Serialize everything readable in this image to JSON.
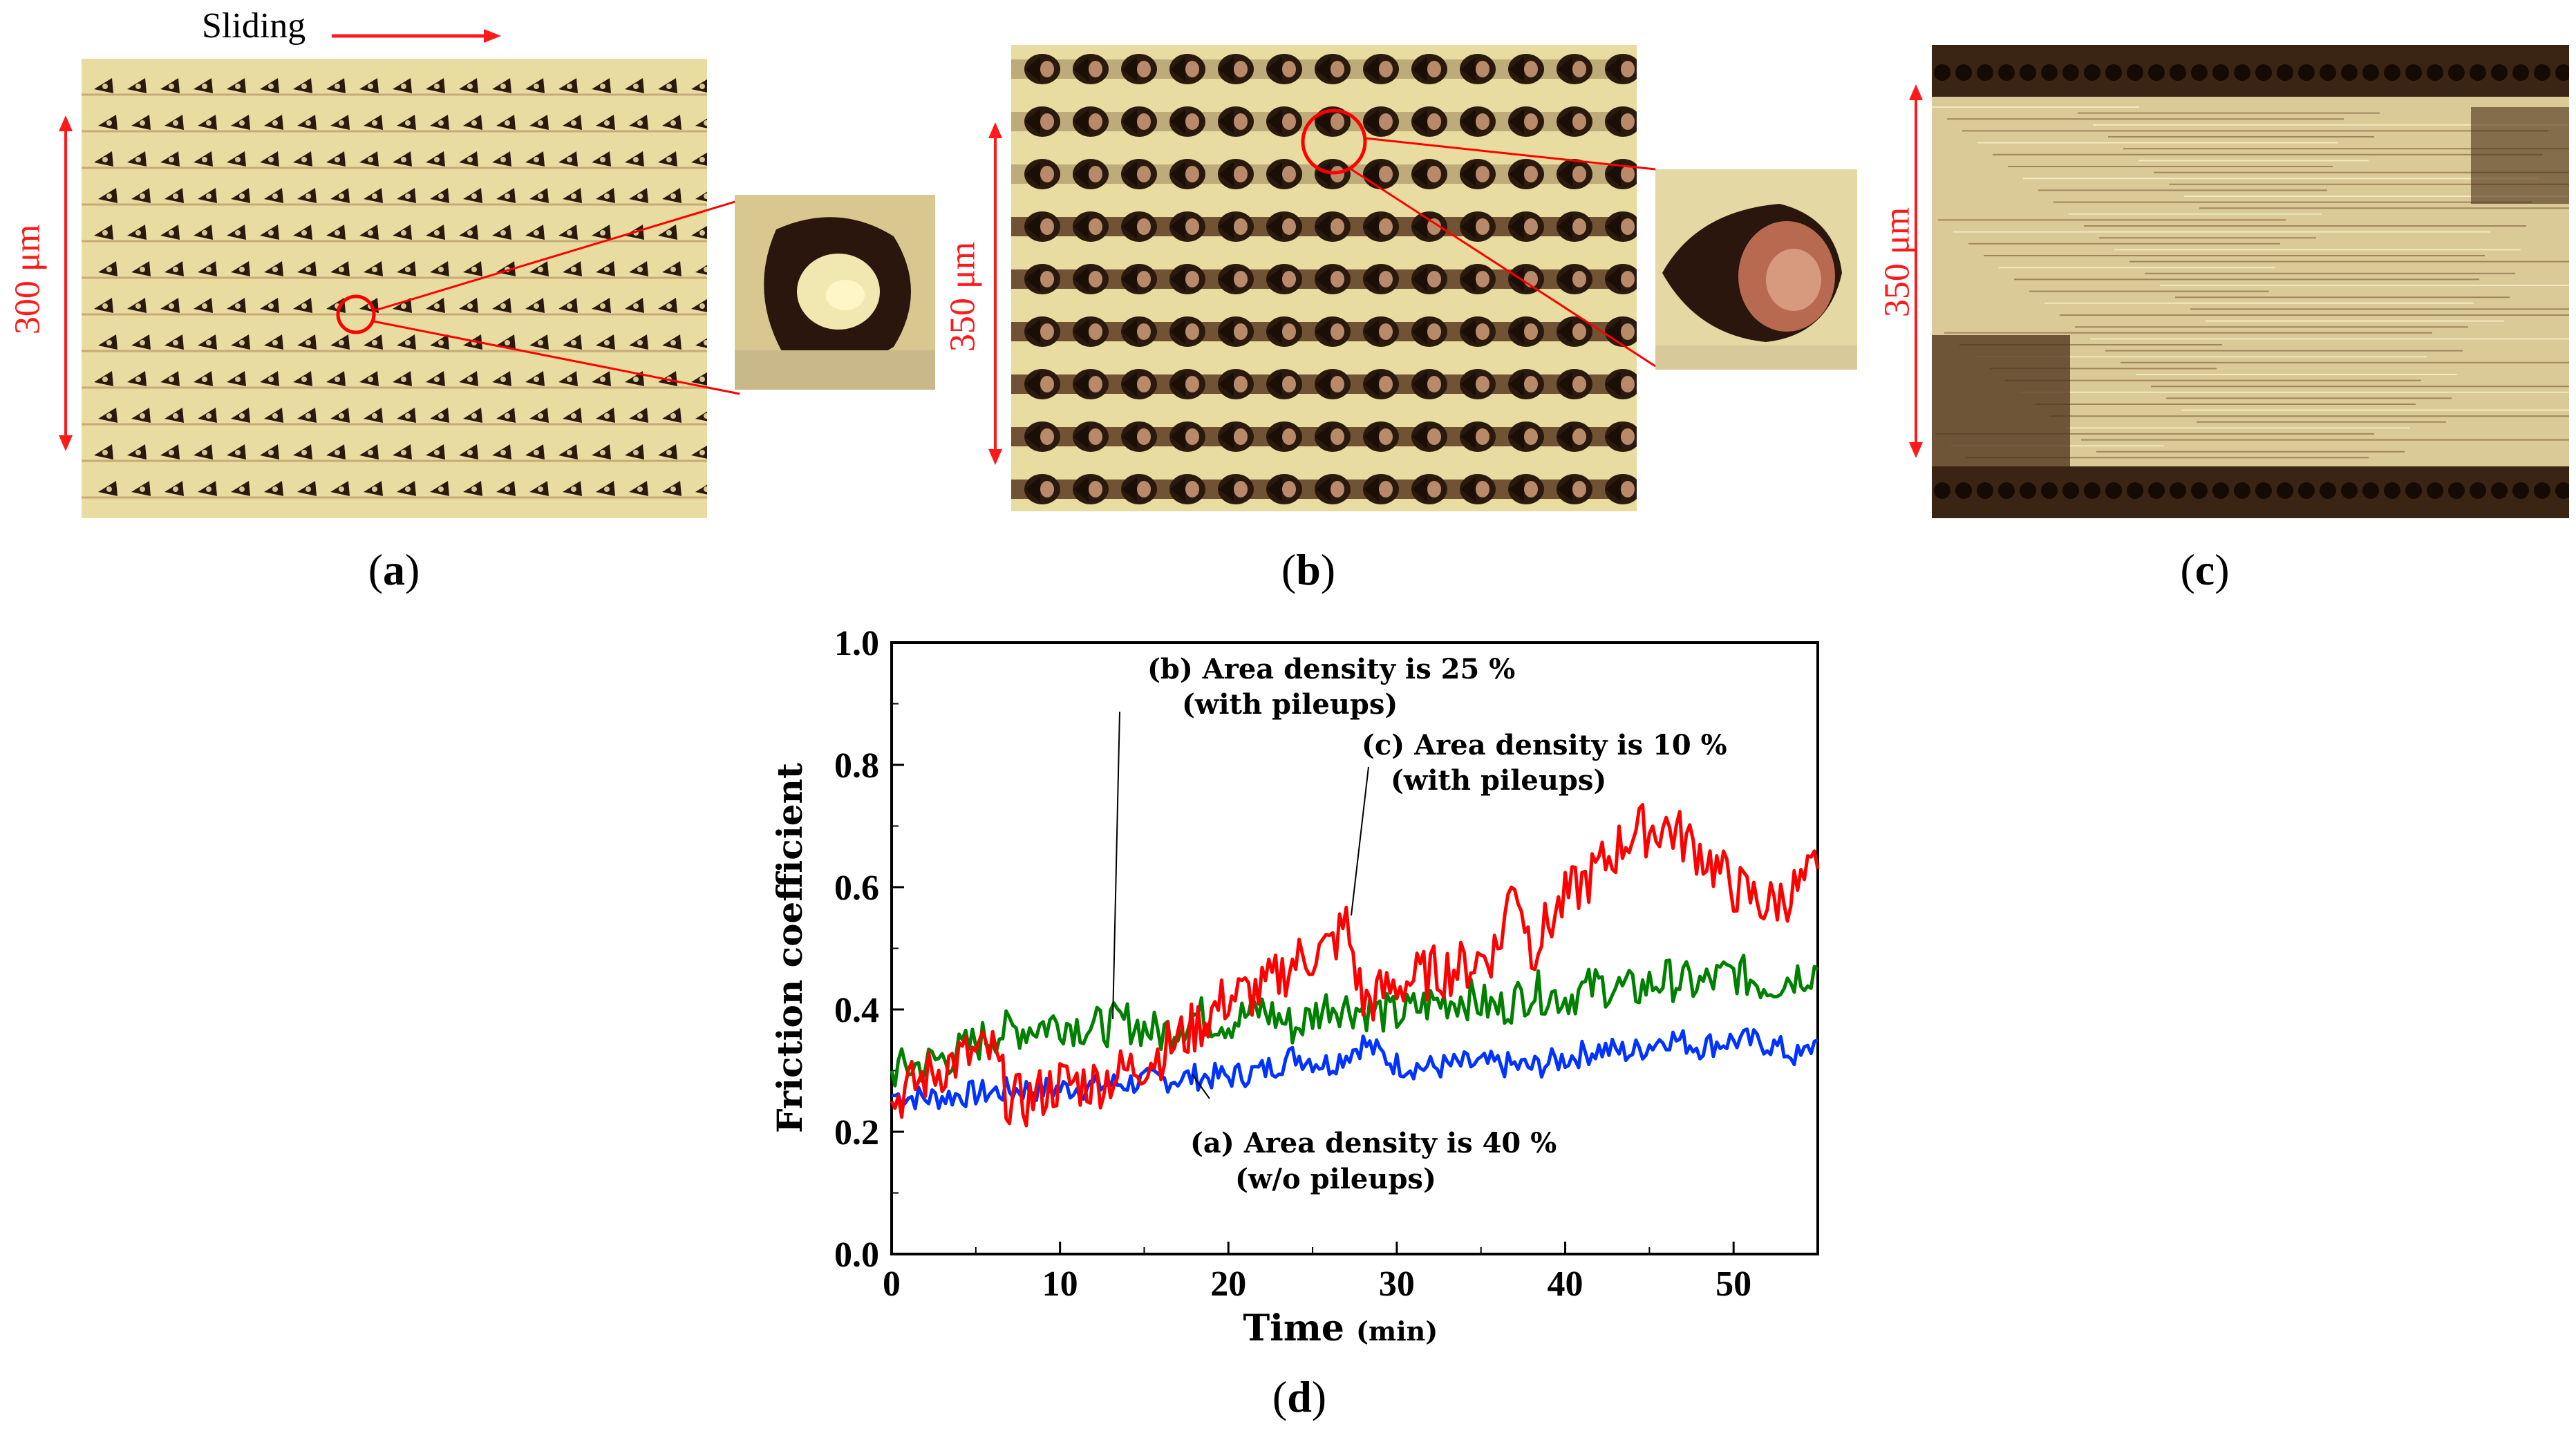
{
  "panels": {
    "a": {
      "label": "(a)",
      "letter": "a",
      "scale": "300 μm",
      "sliding": "Sliding"
    },
    "b": {
      "label": "(b)",
      "letter": "b",
      "scale": "350 μm"
    },
    "c": {
      "label": "(c)",
      "letter": "c",
      "scale": "350 μm"
    },
    "d": {
      "letter": "d"
    }
  },
  "colors": {
    "red": "#ff0000",
    "green": "#008000",
    "blue": "#0033ff",
    "scale_red": "#ff1a1a",
    "micro_bg": "#e8dca0",
    "micro_dark": "#2a1a0e"
  },
  "chart_data": {
    "type": "line",
    "xlabel": "Time",
    "xlabel_unit": "(min)",
    "ylabel": "Friction coefficient",
    "xlim": [
      0,
      55
    ],
    "ylim": [
      0.0,
      1.0
    ],
    "xticks": [
      0,
      10,
      20,
      30,
      40,
      50
    ],
    "yticks": [
      "0.0",
      "0.2",
      "0.4",
      "0.6",
      "0.8",
      "1.0"
    ],
    "series": [
      {
        "name": "(a) Area density is 40 %",
        "note": "(w/o pileups)",
        "color": "#0033ff",
        "x": [
          0,
          2,
          4,
          6,
          8,
          10,
          12,
          14,
          16,
          18,
          20,
          22,
          24,
          26,
          28,
          30,
          32,
          34,
          36,
          38,
          40,
          42,
          44,
          46,
          48,
          50,
          52,
          54,
          55
        ],
        "y": [
          0.26,
          0.255,
          0.26,
          0.265,
          0.27,
          0.27,
          0.275,
          0.28,
          0.285,
          0.29,
          0.29,
          0.3,
          0.325,
          0.31,
          0.345,
          0.31,
          0.305,
          0.31,
          0.31,
          0.305,
          0.32,
          0.335,
          0.33,
          0.355,
          0.34,
          0.35,
          0.345,
          0.32,
          0.35
        ]
      },
      {
        "name": "(b) Area density is 25 %",
        "note": "(with pileups)",
        "color": "#008000",
        "x": [
          0,
          2,
          4,
          6,
          8,
          10,
          12,
          14,
          16,
          18,
          20,
          22,
          24,
          26,
          28,
          30,
          32,
          34,
          36,
          38,
          40,
          42,
          44,
          46,
          48,
          50,
          52,
          54,
          55
        ],
        "y": [
          0.3,
          0.31,
          0.33,
          0.36,
          0.37,
          0.38,
          0.37,
          0.38,
          0.36,
          0.39,
          0.38,
          0.4,
          0.37,
          0.41,
          0.4,
          0.39,
          0.41,
          0.42,
          0.4,
          0.43,
          0.42,
          0.44,
          0.43,
          0.45,
          0.44,
          0.46,
          0.44,
          0.46,
          0.465
        ]
      },
      {
        "name": "(c) Area density is 10 %",
        "note": "(with pileups)",
        "color": "#ff0000",
        "x": [
          0,
          2,
          4,
          6,
          7,
          8,
          10,
          12,
          14,
          16,
          18,
          20,
          22,
          24,
          26,
          27,
          28,
          30,
          32,
          34,
          36,
          37,
          38,
          40,
          42,
          44,
          46,
          48,
          50,
          52,
          54,
          55
        ],
        "y": [
          0.25,
          0.29,
          0.32,
          0.33,
          0.25,
          0.25,
          0.28,
          0.28,
          0.3,
          0.33,
          0.37,
          0.42,
          0.43,
          0.48,
          0.5,
          0.54,
          0.41,
          0.44,
          0.46,
          0.47,
          0.5,
          0.62,
          0.5,
          0.58,
          0.63,
          0.69,
          0.7,
          0.66,
          0.6,
          0.57,
          0.6,
          0.63
        ]
      }
    ]
  }
}
